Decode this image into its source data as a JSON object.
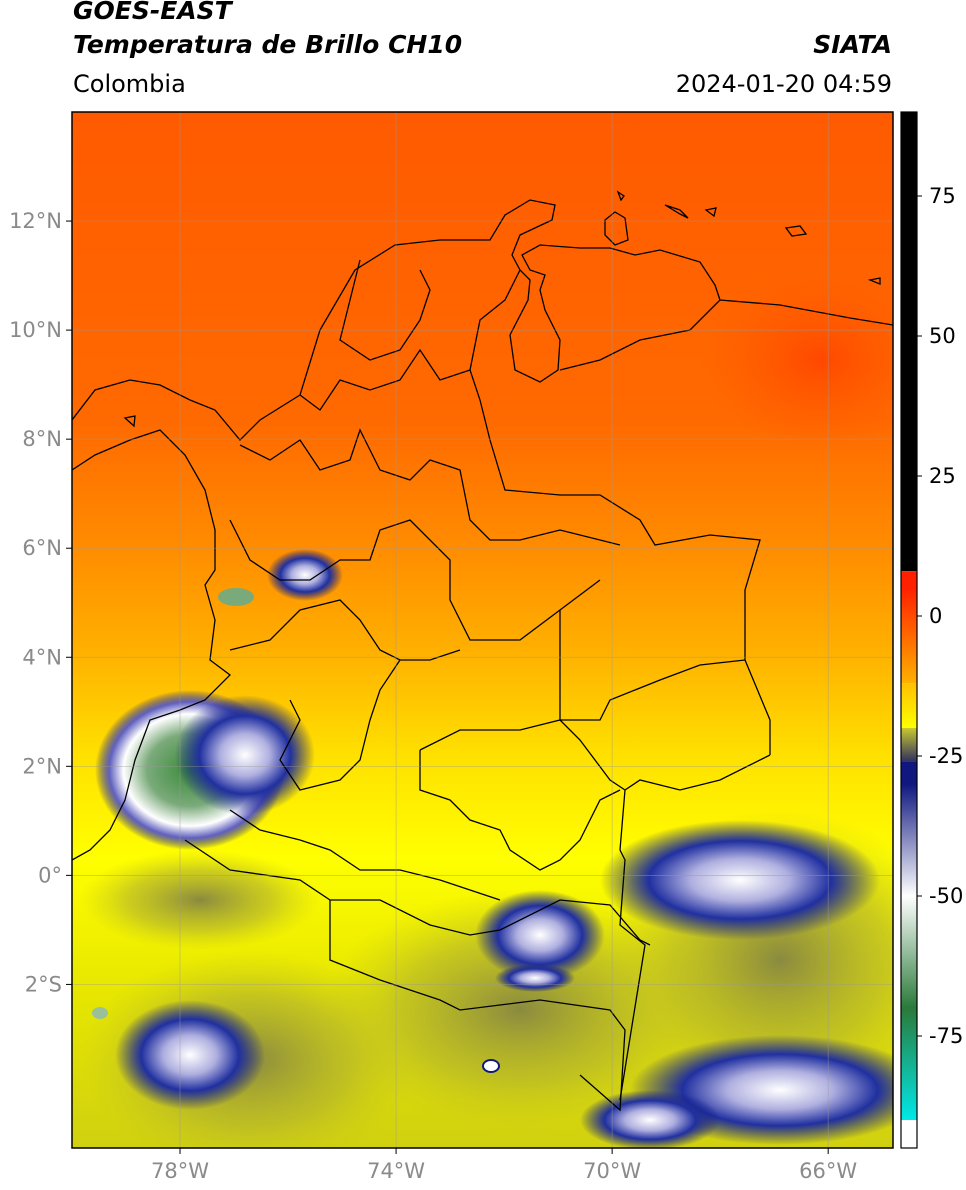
{
  "header": {
    "title_line1": "GOES-EAST",
    "title_line2": "Temperatura de Brillo CH10",
    "organization": "SIATA",
    "region": "Colombia",
    "timestamp": "2024-01-20 04:59"
  },
  "map": {
    "lon_range": [
      -80,
      -64.8
    ],
    "lat_range": [
      -5.0,
      14.0
    ],
    "lat_ticks": [
      {
        "value": 12,
        "label": "12°N"
      },
      {
        "value": 10,
        "label": "10°N"
      },
      {
        "value": 8,
        "label": "8°N"
      },
      {
        "value": 6,
        "label": "6°N"
      },
      {
        "value": 4,
        "label": "4°N"
      },
      {
        "value": 2,
        "label": "2°N"
      },
      {
        "value": 0,
        "label": "0°"
      },
      {
        "value": -2,
        "label": "2°S"
      }
    ],
    "lon_ticks": [
      {
        "value": -78,
        "label": "78°W"
      },
      {
        "value": -74,
        "label": "74°W"
      },
      {
        "value": -70,
        "label": "70°W"
      },
      {
        "value": -66,
        "label": "66°W"
      }
    ],
    "gridlines": true
  },
  "colorbar": {
    "range": [
      -95,
      90
    ],
    "ticks": [
      {
        "value": 75,
        "label": "75"
      },
      {
        "value": 50,
        "label": "50"
      },
      {
        "value": 25,
        "label": "25"
      },
      {
        "value": 0,
        "label": "0"
      },
      {
        "value": -25,
        "label": "-25"
      },
      {
        "value": -50,
        "label": "-50"
      },
      {
        "value": -75,
        "label": "-75"
      }
    ],
    "colors": {
      "black": "#000000",
      "red": "#ff2000",
      "orange": "#ff8c00",
      "yellow": "#ffff00",
      "olive": "#9a9a2a",
      "navy": "#101880",
      "white": "#ffffff",
      "green": "#3a8a3a",
      "cyan": "#00e0e0"
    }
  }
}
